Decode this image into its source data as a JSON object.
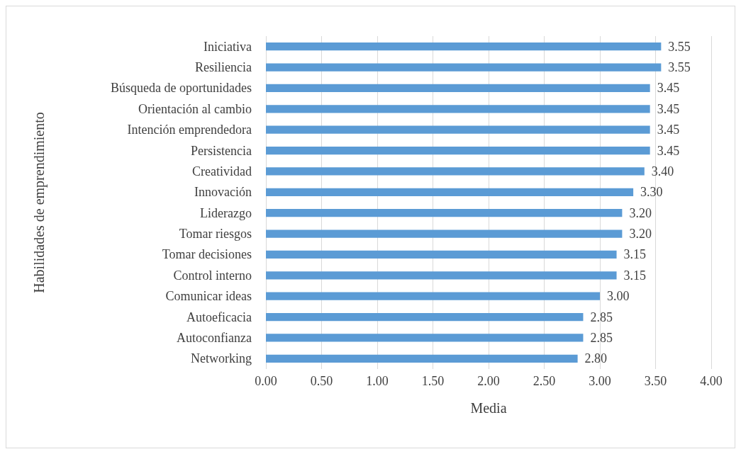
{
  "chart_data": {
    "type": "bar",
    "orientation": "horizontal",
    "xlabel": "Media",
    "ylabel": "Habilidades de emprendimiento",
    "categories": [
      "Iniciativa",
      "Resiliencia",
      "Búsqueda de oportunidades",
      "Orientación al cambio",
      "Intención emprendedora",
      "Persistencia",
      "Creatividad",
      "Innovación",
      "Liderazgo",
      "Tomar riesgos",
      "Tomar decisiones",
      "Control interno",
      "Comunicar ideas",
      "Autoeficacia",
      "Autoconfianza",
      "Networking"
    ],
    "values": [
      3.55,
      3.55,
      3.45,
      3.45,
      3.45,
      3.45,
      3.4,
      3.3,
      3.2,
      3.2,
      3.15,
      3.15,
      3.0,
      2.85,
      2.85,
      2.8
    ],
    "value_labels": [
      "3.55",
      "3.55",
      "3.45",
      "3.45",
      "3.45",
      "3.45",
      "3.40",
      "3.30",
      "3.20",
      "3.20",
      "3.15",
      "3.15",
      "3.00",
      "2.85",
      "2.85",
      "2.80"
    ],
    "color": "#5b9bd5",
    "xlim": [
      0,
      4
    ],
    "xticks": [
      {
        "value": 0,
        "label": "0.00"
      },
      {
        "value": 0.5,
        "label": "0.50"
      },
      {
        "value": 1,
        "label": "1.00"
      },
      {
        "value": 1.5,
        "label": "1.50"
      },
      {
        "value": 2,
        "label": "2.00"
      },
      {
        "value": 2.5,
        "label": "2.50"
      },
      {
        "value": 3,
        "label": "3.00"
      },
      {
        "value": 3.5,
        "label": "3.50"
      },
      {
        "value": 4,
        "label": "4.00"
      }
    ],
    "grid": "x"
  }
}
